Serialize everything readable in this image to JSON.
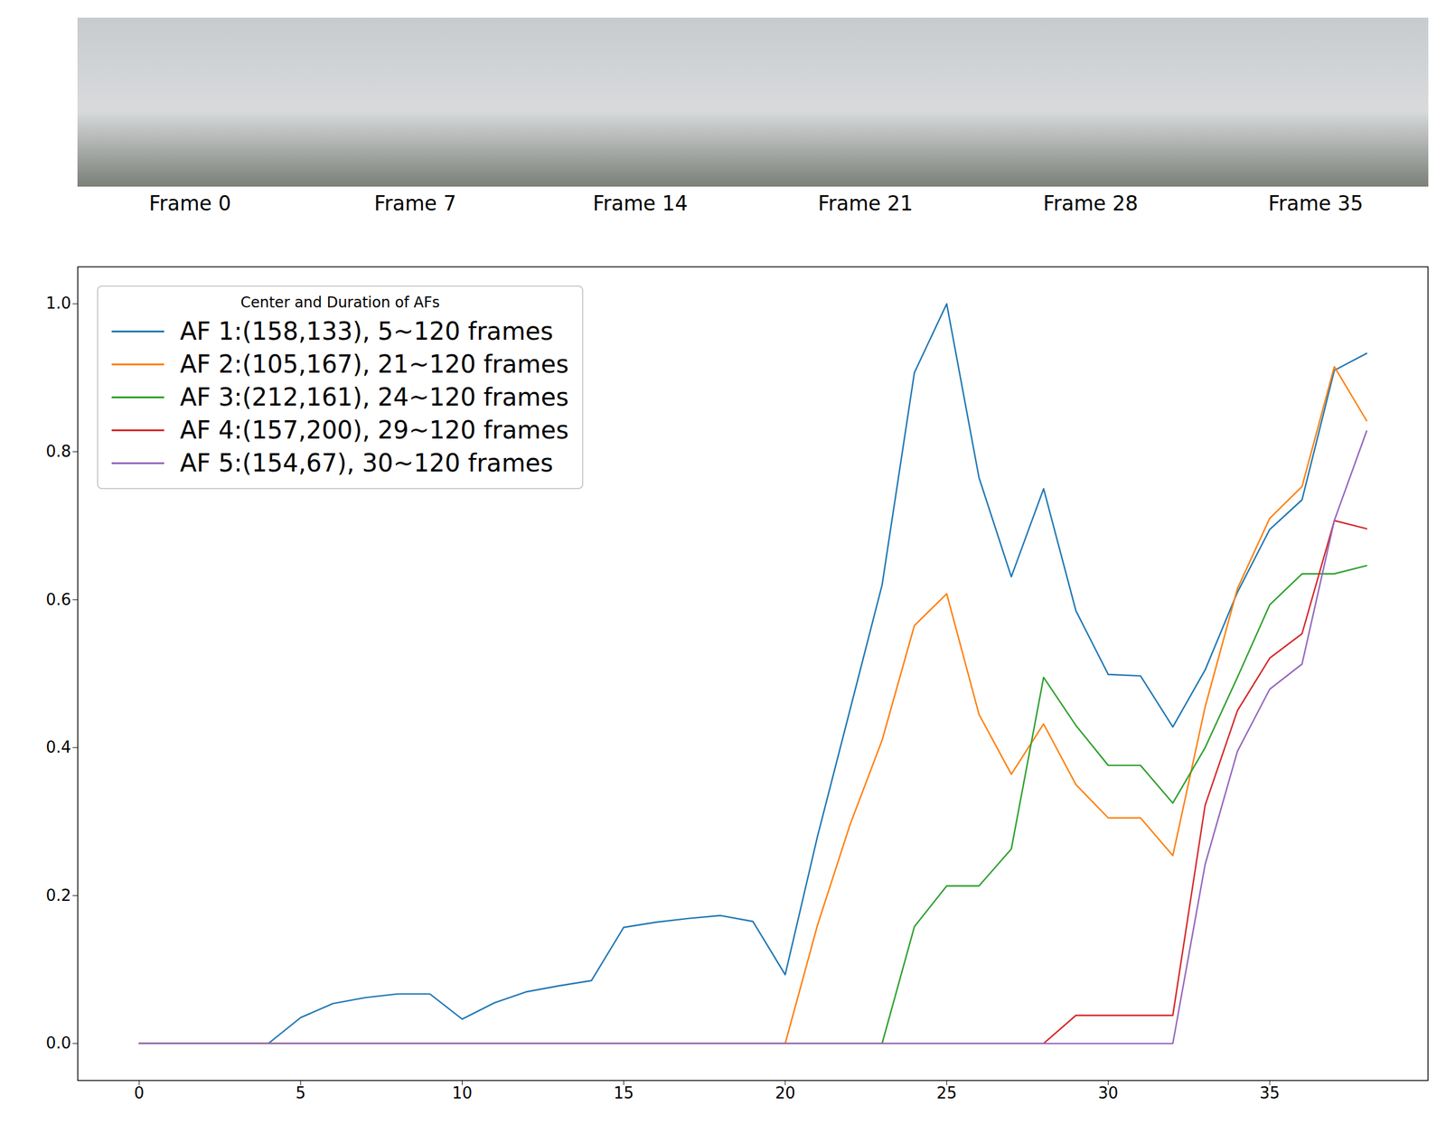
{
  "chart_data": {
    "type": "line",
    "annotations": [
      "Frame 0",
      "Frame 7",
      "Frame 14",
      "Frame 21",
      "Frame 28",
      "Frame 35"
    ],
    "legend_title": "Center and Duration of AFs",
    "legend": "upper left",
    "grid": false,
    "x": [
      0,
      1,
      2,
      3,
      4,
      5,
      6,
      7,
      8,
      9,
      10,
      11,
      12,
      13,
      14,
      15,
      16,
      17,
      18,
      19,
      20,
      21,
      22,
      23,
      24,
      25,
      26,
      27,
      28,
      29,
      30,
      31,
      32,
      33,
      34,
      35,
      36,
      37,
      38
    ],
    "xlim": [
      -1.9,
      39.9
    ],
    "xticks": [
      0,
      5,
      10,
      15,
      20,
      25,
      30,
      35
    ],
    "ylim": [
      -0.05,
      1.05
    ],
    "yticks": [
      {
        "value": 0,
        "label": "0.0"
      },
      0.2,
      0.4,
      0.6,
      0.8,
      {
        "value": 1,
        "label": "1.0"
      }
    ],
    "series": [
      {
        "name": "AF 1:(158,133), 5~120 frames",
        "color": "#1f77b4",
        "values": [
          0,
          0,
          0,
          0,
          0,
          0.035,
          0.054,
          0.062,
          0.067,
          0.067,
          0.033,
          0.055,
          0.07,
          0.078,
          0.085,
          0.157,
          0.164,
          0.169,
          0.173,
          0.165,
          0.093,
          0.28,
          0.45,
          0.62,
          0.907,
          1.0,
          0.765,
          0.631,
          0.75,
          0.585,
          0.499,
          0.497,
          0.428,
          0.505,
          0.61,
          0.695,
          0.735,
          0.91,
          0.933
        ]
      },
      {
        "name": "AF 2:(105,167), 21~120 frames",
        "color": "#ff7f0e",
        "values": [
          0,
          0,
          0,
          0,
          0,
          0,
          0,
          0,
          0,
          0,
          0,
          0,
          0,
          0,
          0,
          0,
          0,
          0,
          0,
          0,
          0,
          0.16,
          0.295,
          0.41,
          0.565,
          0.608,
          0.445,
          0.364,
          0.432,
          0.35,
          0.305,
          0.305,
          0.254,
          0.455,
          0.615,
          0.71,
          0.753,
          0.915,
          0.842
        ]
      },
      {
        "name": "AF 3:(212,161), 24~120 frames",
        "color": "#2ca02c",
        "values": [
          0,
          0,
          0,
          0,
          0,
          0,
          0,
          0,
          0,
          0,
          0,
          0,
          0,
          0,
          0,
          0,
          0,
          0,
          0,
          0,
          0,
          0,
          0,
          0,
          0.158,
          0.213,
          0.213,
          0.263,
          0.495,
          0.43,
          0.376,
          0.376,
          0.325,
          0.4,
          0.495,
          0.593,
          0.635,
          0.635,
          0.646
        ]
      },
      {
        "name": "AF 4:(157,200), 29~120 frames",
        "color": "#d62728",
        "values": [
          0,
          0,
          0,
          0,
          0,
          0,
          0,
          0,
          0,
          0,
          0,
          0,
          0,
          0,
          0,
          0,
          0,
          0,
          0,
          0,
          0,
          0,
          0,
          0,
          0,
          0,
          0,
          0,
          0,
          0.038,
          0.038,
          0.038,
          0.038,
          0.322,
          0.45,
          0.521,
          0.554,
          0.707,
          0.696
        ]
      },
      {
        "name": "AF 5:(154,67), 30~120 frames",
        "color": "#9467bd",
        "values": [
          0,
          0,
          0,
          0,
          0,
          0,
          0,
          0,
          0,
          0,
          0,
          0,
          0,
          0,
          0,
          0,
          0,
          0,
          0,
          0,
          0,
          0,
          0,
          0,
          0,
          0,
          0,
          0,
          0,
          0,
          0,
          0,
          0,
          0.242,
          0.395,
          0.479,
          0.513,
          0.707,
          0.828
        ]
      }
    ]
  }
}
